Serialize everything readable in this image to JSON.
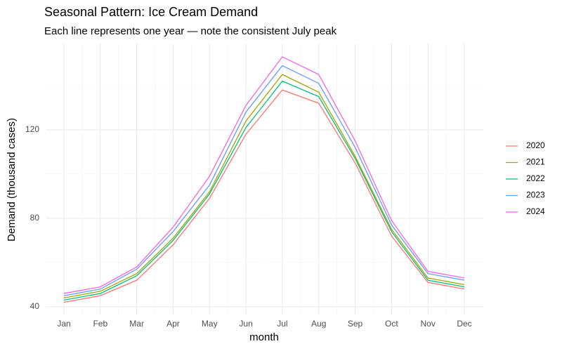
{
  "chart_data": {
    "type": "line",
    "title": "Seasonal Pattern: Ice Cream Demand",
    "subtitle": "Each line represents one year — note the consistent July peak",
    "x_label": "month",
    "y_label": "Demand (thousand cases)",
    "categories": [
      "Jan",
      "Feb",
      "Mar",
      "Apr",
      "May",
      "Jun",
      "Jul",
      "Aug",
      "Sep",
      "Oct",
      "Nov",
      "Dec"
    ],
    "series": [
      {
        "name": "2020",
        "color": "#F8766D",
        "values": [
          42,
          45,
          52,
          68,
          89,
          118,
          138,
          132,
          105,
          72,
          51,
          48
        ]
      },
      {
        "name": "2021",
        "color": "#A3A500",
        "values": [
          44,
          47,
          55,
          71,
          92,
          124,
          145,
          137,
          108,
          75,
          53,
          50
        ]
      },
      {
        "name": "2022",
        "color": "#00BF7D",
        "values": [
          43,
          46,
          54,
          70,
          91,
          121,
          142,
          135,
          107,
          74,
          52,
          49
        ]
      },
      {
        "name": "2023",
        "color": "#619CFF",
        "values": [
          45,
          48,
          57,
          74,
          95,
          128,
          149,
          141,
          112,
          77,
          55,
          52
        ]
      },
      {
        "name": "2024",
        "color": "#F564E3",
        "values": [
          46,
          49,
          58,
          76,
          99,
          131,
          153,
          145,
          115,
          79,
          56,
          53
        ]
      }
    ],
    "ylim": [
      36.5,
      159
    ],
    "yticks": [
      40,
      80,
      120
    ],
    "y_minor_gridlines": [
      60,
      100,
      140
    ],
    "grid": true,
    "legend_position": "right"
  }
}
